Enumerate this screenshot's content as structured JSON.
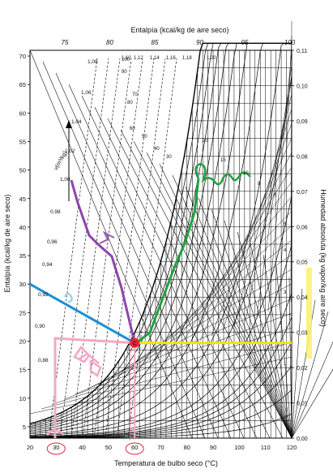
{
  "chart_data": {
    "type": "line",
    "top_axis_label": "Entalpía (kcal/kg de aire seco)",
    "top_ticks": [
      75,
      80,
      85,
      90,
      95,
      100
    ],
    "left_axis_label": "Entalpía (kcal/kg de aire seco)",
    "left_ticks": [
      5,
      10,
      15,
      20,
      25,
      30,
      35,
      40,
      45,
      50,
      55,
      60,
      65,
      70
    ],
    "bottom_axis_label": "Temperatura de bulbo seco (°C)",
    "bottom_ticks": [
      20,
      30,
      40,
      50,
      60,
      70,
      80,
      90,
      100,
      110,
      120
    ],
    "right_axis_label": "Humedad absoluta (kg vapor/kg aire seco)",
    "right_ticks": [
      "0,00",
      "0,01",
      "0,02",
      "0,03",
      "0,04",
      "0,05",
      "0,06",
      "0,07",
      "0,08",
      "0,09",
      "0,10",
      "0,11"
    ],
    "xlim": [
      20,
      120
    ],
    "ylim_humidity": [
      0,
      0.11
    ],
    "volume_label": "v(m³/kg)",
    "volume_ticks": [
      "0,88",
      "0,90",
      "0,92",
      "0,94",
      "0,96",
      "0,98",
      "1,00",
      "1,02",
      "1,04",
      "1,06",
      "1,08"
    ],
    "rh_labels": [
      "100",
      "90",
      "80",
      "70",
      "60",
      "50",
      "40",
      "30",
      "20",
      "15",
      "10",
      "8",
      "6",
      "5",
      "4",
      "3",
      "2",
      "1",
      "1,10",
      "1,12",
      "1,14",
      "1,16",
      "1,18",
      "1,20"
    ],
    "annotations": {
      "marked_temps": [
        "30",
        "60"
      ],
      "mixing_point": {
        "temp": 60,
        "humidity": 0.027
      },
      "yellow_line_humidity": 0.027,
      "blue_line_enthalpy": 30,
      "pink_line_enthalpy": 20.5
    }
  }
}
